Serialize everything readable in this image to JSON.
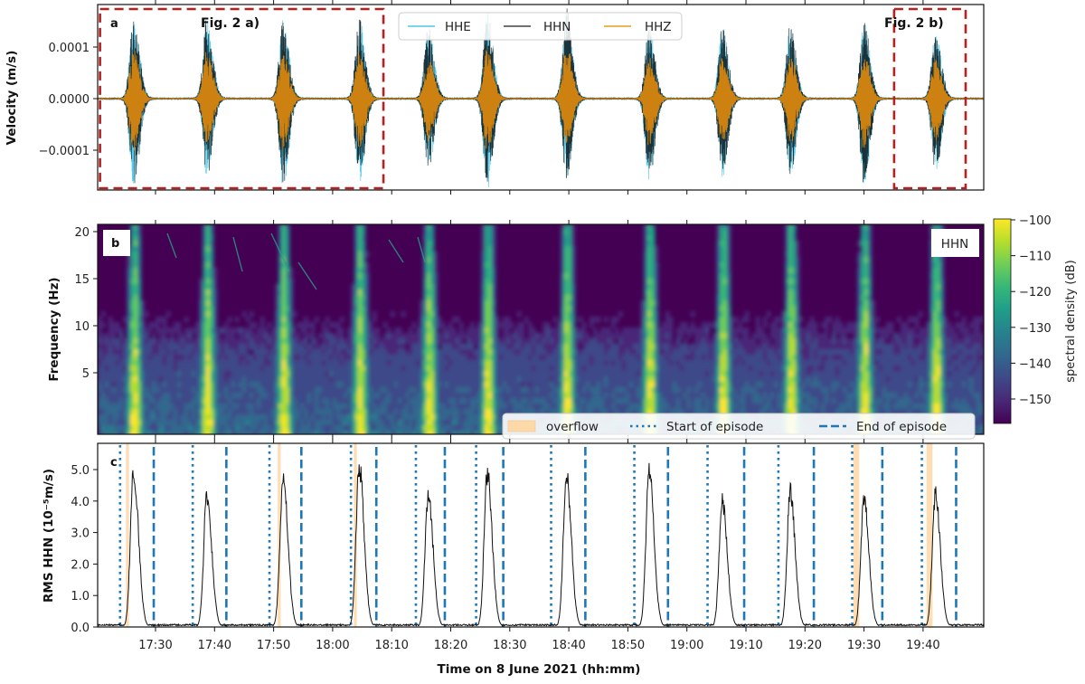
{
  "chart_data": [
    {
      "panel": "a",
      "type": "line",
      "ylabel": "Velocity (m/s)",
      "xlim": [
        "17:20",
        "19:50"
      ],
      "ylim": [
        -0.00018,
        0.00018
      ],
      "yticks": [
        {
          "value": 0.0001,
          "label": "0.0001"
        },
        {
          "value": 0.0,
          "label": "0.0000"
        },
        {
          "value": -0.0001,
          "label": "−0.0001"
        }
      ],
      "legend": {
        "placement": "top-center",
        "entries": [
          {
            "name": "HHE",
            "color": "#4dc7e8"
          },
          {
            "name": "HHN",
            "color": "#1a1a1a"
          },
          {
            "name": "HHZ",
            "color": "#e0a020"
          }
        ]
      },
      "series_colors": {
        "HHE": "#4dc7e8",
        "HHN": "#152a33",
        "HHZ": "#d6860f"
      },
      "bursts": [
        {
          "time": "17:26.3",
          "amp_pos": 0.000145,
          "amp_neg": -0.000155
        },
        {
          "time": "17:38.7",
          "amp_pos": 0.000145,
          "amp_neg": -0.00014
        },
        {
          "time": "17:51.6",
          "amp_pos": 0.00014,
          "amp_neg": -0.000155
        },
        {
          "time": "18:04.5",
          "amp_pos": 0.00014,
          "amp_neg": -0.00015
        },
        {
          "time": "18:16.2",
          "amp_pos": 0.000125,
          "amp_neg": -0.000125
        },
        {
          "time": "18:26.2",
          "amp_pos": 0.00015,
          "amp_neg": -0.00016
        },
        {
          "time": "18:39.6",
          "amp_pos": 0.00016,
          "amp_neg": -0.00014
        },
        {
          "time": "18:53.6",
          "amp_pos": 0.000125,
          "amp_neg": -0.000145
        },
        {
          "time": "19:06.0",
          "amp_pos": 0.000125,
          "amp_neg": -0.000135
        },
        {
          "time": "19:17.5",
          "amp_pos": 0.00013,
          "amp_neg": -0.000135
        },
        {
          "time": "19:30.0",
          "amp_pos": 0.00014,
          "amp_neg": -0.000155
        },
        {
          "time": "19:42.1",
          "amp_pos": 0.00012,
          "amp_neg": -0.00013
        }
      ],
      "annotations": [
        {
          "label": "Fig. 2 a)",
          "from": "17:20.6",
          "to": "18:08.6",
          "color": "#b22222"
        },
        {
          "label": "Fig. 2 b)",
          "from": "19:35.1",
          "to": "19:57.4",
          "color": "#b22222"
        }
      ],
      "panel_label": "a"
    },
    {
      "panel": "b",
      "type": "heatmap",
      "ylabel": "Frequency (Hz)",
      "ylim": [
        1,
        20.8
      ],
      "yticks": [
        {
          "value": 20,
          "label": "20"
        },
        {
          "value": 15,
          "label": "15"
        },
        {
          "value": 10,
          "label": "10"
        },
        {
          "value": 5,
          "label": "5"
        }
      ],
      "colorbar": {
        "label": "spectral density (dB)",
        "range": [
          -155,
          -100
        ],
        "ticks": [
          {
            "value": -100,
            "label": "−100"
          },
          {
            "value": -110,
            "label": "−110"
          },
          {
            "value": -120,
            "label": "−120"
          },
          {
            "value": -130,
            "label": "−130"
          },
          {
            "value": -140,
            "label": "−140"
          },
          {
            "value": -150,
            "label": "−150"
          }
        ],
        "colormap": [
          "#440154",
          "#482878",
          "#3e4989",
          "#31688e",
          "#26828e",
          "#1f9e89",
          "#35b779",
          "#6ece58",
          "#b5de2b",
          "#fde725"
        ]
      },
      "channel_label": "HHN",
      "panel_label": "b"
    },
    {
      "panel": "c",
      "type": "line",
      "ylabel": "RMS HHN (10⁻⁵m/s)",
      "xlabel": "Time on 8 June 2021 (hh:mm)",
      "ylim": [
        0,
        5.83
      ],
      "xlim": [
        "17:20",
        "19:50"
      ],
      "yticks": [
        {
          "value": 0,
          "label": "0.0"
        },
        {
          "value": 1,
          "label": "1.0"
        },
        {
          "value": 2,
          "label": "2.0"
        },
        {
          "value": 3,
          "label": "3.0"
        },
        {
          "value": 4,
          "label": "4.0"
        },
        {
          "value": 5,
          "label": "5.0"
        }
      ],
      "xticks": [
        "17:30",
        "17:40",
        "17:50",
        "18:00",
        "18:10",
        "18:20",
        "18:30",
        "18:40",
        "18:50",
        "19:00",
        "19:10",
        "19:20",
        "19:30",
        "19:40"
      ],
      "legend": {
        "placement": "top-right",
        "entries": [
          {
            "name": "overflow",
            "color": "#fdd9a8"
          },
          {
            "name": "Start of episode",
            "color": "#1f77b4"
          },
          {
            "name": "End of episode",
            "color": "#1f77b4"
          }
        ]
      },
      "episodes": [
        {
          "start": "17:24.0",
          "end": "17:29.7",
          "peak_time": "17:26.3",
          "peak": 5.2,
          "overflow": [
            "17:25.0",
            "17:25.5"
          ]
        },
        {
          "start": "17:36.3",
          "end": "17:42.0",
          "peak_time": "17:38.7",
          "peak": 4.4
        },
        {
          "start": "17:49.3",
          "end": "17:54.7",
          "peak_time": "17:51.6",
          "peak": 5.0,
          "overflow": [
            "17:50.7",
            "17:51.2"
          ]
        },
        {
          "start": "18:03.1",
          "end": "18:07.4",
          "peak_time": "18:04.5",
          "peak": 5.4,
          "overflow": [
            "18:03.6",
            "18:04.1"
          ]
        },
        {
          "start": "18:14.1",
          "end": "18:19.0",
          "peak_time": "18:16.2",
          "peak": 4.4
        },
        {
          "start": "18:24.3",
          "end": "18:28.9",
          "peak_time": "18:26.2",
          "peak": 5.1
        },
        {
          "start": "18:37.0",
          "end": "18:42.8",
          "peak_time": "18:39.6",
          "peak": 5.0
        },
        {
          "start": "18:51.1",
          "end": "18:56.8",
          "peak_time": "18:53.6",
          "peak": 5.2
        },
        {
          "start": "19:03.5",
          "end": "19:09.7",
          "peak_time": "19:06.0",
          "peak": 4.2
        },
        {
          "start": "19:15.5",
          "end": "19:21.5",
          "peak_time": "19:17.5",
          "peak": 4.5
        },
        {
          "start": "19:28.0",
          "end": "19:33.1",
          "peak_time": "19:30.0",
          "peak": 4.3,
          "overflow": [
            "19:28.2",
            "19:29.2"
          ]
        },
        {
          "start": "19:39.8",
          "end": "19:45.6",
          "peak_time": "19:42.1",
          "peak": 4.4,
          "overflow": [
            "19:40.6",
            "19:41.6"
          ]
        }
      ],
      "panel_label": "c"
    }
  ]
}
